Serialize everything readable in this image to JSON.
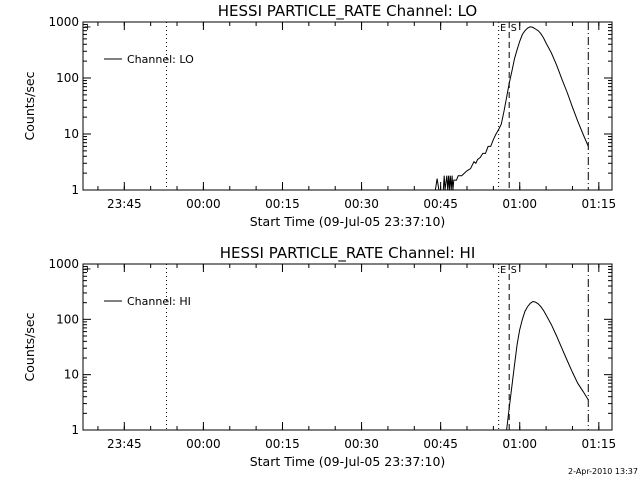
{
  "chart_data": [
    {
      "type": "line",
      "title": "HESSI PARTICLE_RATE Channel: LO",
      "xlabel": "Start Time (09-Jul-05 23:37:10)",
      "ylabel": "Counts/sec",
      "yscale": "log",
      "ylim": [
        1,
        1000
      ],
      "xlim": [
        "23:37:10",
        "01:17:30"
      ],
      "x_ticks": [
        "23:45",
        "00:00",
        "00:15",
        "00:30",
        "00:45",
        "01:00",
        "01:15"
      ],
      "y_ticks": [
        "1",
        "10",
        "100",
        "1000"
      ],
      "legend": {
        "position": "top-left",
        "entries": [
          "Channel: LO"
        ]
      },
      "markers": [
        {
          "time": "23:53",
          "style": "dotted",
          "label": ""
        },
        {
          "time": "00:56",
          "style": "dotted",
          "label": "E"
        },
        {
          "time": "00:58",
          "style": "dashed",
          "label": "S"
        },
        {
          "time": "01:13",
          "style": "dashdot",
          "label": ""
        }
      ],
      "series": [
        {
          "name": "Channel: LO",
          "x": [
            "00:44:00",
            "00:44:20",
            "00:44:40",
            "00:45:30",
            "00:45:40",
            "00:45:50",
            "00:46:10",
            "00:46:20",
            "00:46:30",
            "00:46:40",
            "00:46:50",
            "00:47:00",
            "00:47:10",
            "00:47:20",
            "00:47:30",
            "00:48:00",
            "00:48:20",
            "00:49:00",
            "00:49:30",
            "00:50:00",
            "00:50:20",
            "00:50:40",
            "00:51:00",
            "00:51:20",
            "00:51:40",
            "00:52:00",
            "00:52:30",
            "00:53:00",
            "00:53:30",
            "00:54:00",
            "00:54:30",
            "00:55:00",
            "00:55:30",
            "00:56:00",
            "00:56:30",
            "00:57:00",
            "00:57:30",
            "00:58:00",
            "00:58:30",
            "00:59:00",
            "00:59:30",
            "01:00:00",
            "01:00:30",
            "01:01:00",
            "01:01:30",
            "01:02:00",
            "01:02:30",
            "01:03:00",
            "01:03:30",
            "01:04:00",
            "01:04:30",
            "01:05:00",
            "01:06:00",
            "01:07:00",
            "01:08:00",
            "01:09:00",
            "01:10:00",
            "01:11:00",
            "01:12:00",
            "01:13:00"
          ],
          "y": [
            1,
            1.6,
            1,
            1,
            1.8,
            1,
            1.8,
            1,
            1.8,
            1,
            1.8,
            1,
            1.8,
            1,
            1.5,
            1.5,
            1.8,
            1.8,
            2,
            2.2,
            2.3,
            2.4,
            2.8,
            3.2,
            3,
            3.5,
            3.8,
            4.5,
            4.5,
            6,
            6,
            8,
            10,
            12,
            15,
            25,
            45,
            80,
            130,
            220,
            320,
            450,
            600,
            700,
            780,
            820,
            800,
            750,
            700,
            620,
            520,
            420,
            280,
            170,
            95,
            55,
            30,
            17,
            10,
            6
          ]
        }
      ]
    },
    {
      "type": "line",
      "title": "HESSI PARTICLE_RATE Channel: HI",
      "xlabel": "Start Time (09-Jul-05 23:37:10)",
      "ylabel": "Counts/sec",
      "yscale": "log",
      "ylim": [
        1,
        1000
      ],
      "xlim": [
        "23:37:10",
        "01:17:30"
      ],
      "x_ticks": [
        "23:45",
        "00:00",
        "00:15",
        "00:30",
        "00:45",
        "01:00",
        "01:15"
      ],
      "y_ticks": [
        "1",
        "10",
        "100",
        "1000"
      ],
      "legend": {
        "position": "top-left",
        "entries": [
          "Channel: HI"
        ]
      },
      "markers": [
        {
          "time": "23:53",
          "style": "dotted",
          "label": ""
        },
        {
          "time": "00:56",
          "style": "dotted",
          "label": "E"
        },
        {
          "time": "00:58",
          "style": "dashed",
          "label": "S"
        },
        {
          "time": "01:13",
          "style": "dashdot",
          "label": ""
        }
      ],
      "series": [
        {
          "name": "Channel: HI",
          "x": [
            "00:57:30",
            "00:58:00",
            "00:58:30",
            "00:59:00",
            "00:59:30",
            "01:00:00",
            "01:00:30",
            "01:01:00",
            "01:01:30",
            "01:02:00",
            "01:02:30",
            "01:03:00",
            "01:03:30",
            "01:04:00",
            "01:04:30",
            "01:05:00",
            "01:06:00",
            "01:07:00",
            "01:08:00",
            "01:09:00",
            "01:10:00",
            "01:11:00",
            "01:12:00",
            "01:13:00"
          ],
          "y": [
            1,
            2.5,
            6,
            15,
            35,
            65,
            100,
            140,
            170,
            195,
            210,
            205,
            190,
            170,
            145,
            120,
            80,
            50,
            30,
            18,
            11,
            7,
            5,
            3.5
          ]
        }
      ]
    }
  ],
  "footer": {
    "date": "2-Apr-2010 13:37"
  }
}
